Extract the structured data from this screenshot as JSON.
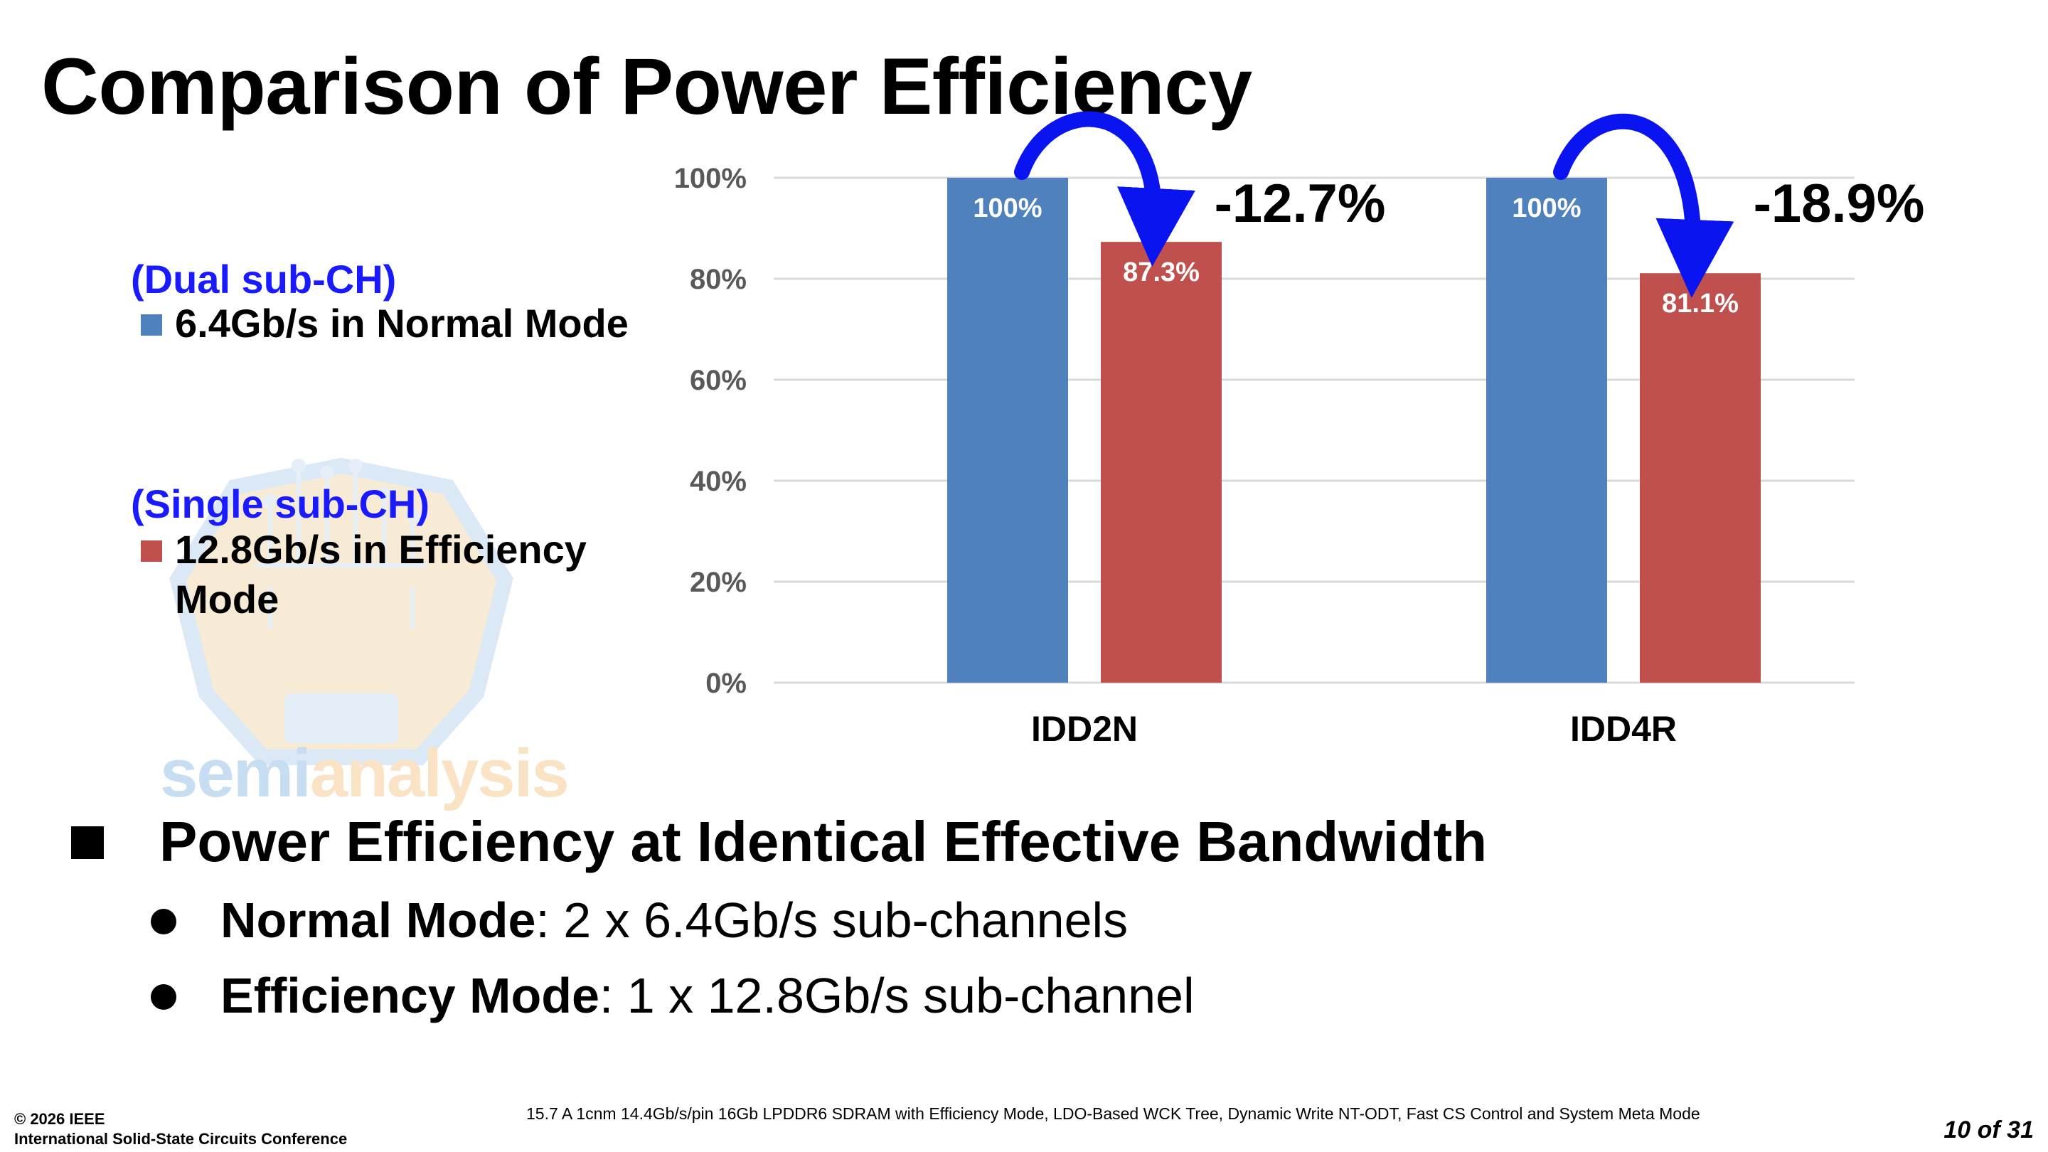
{
  "slide": {
    "title": "Comparison of Power Efficiency"
  },
  "watermark": {
    "text_a": "semi",
    "text_b": "analysis"
  },
  "legend": {
    "group1": "(Dual sub-CH)",
    "item1": "6.4Gb/s in Normal Mode",
    "group2": "(Single sub-CH)",
    "item2_line1": "12.8Gb/s in Efficiency",
    "item2_line2": "Mode"
  },
  "colors": {
    "normal": "#4f81bd",
    "efficiency": "#c0504d",
    "arrow": "#0a14f0",
    "grid": "#d9d9d9",
    "tick": "#595959",
    "legend_group": "#1a1aff"
  },
  "chart_data": {
    "type": "bar",
    "categories": [
      "IDD2N",
      "IDD4R"
    ],
    "series": [
      {
        "name": "6.4Gb/s in Normal Mode",
        "values": [
          100,
          100
        ],
        "labels": [
          "100%",
          "100%"
        ]
      },
      {
        "name": "12.8Gb/s in Efficiency Mode",
        "values": [
          87.3,
          81.1
        ],
        "labels": [
          "87.3%",
          "81.1%"
        ]
      }
    ],
    "ylim": [
      0,
      100
    ],
    "yticks": [
      "0%",
      "20%",
      "40%",
      "60%",
      "80%",
      "100%"
    ],
    "annotations": [
      "-12.7%",
      "-18.9%"
    ],
    "grid": true,
    "legend_position": "left"
  },
  "bullets": {
    "main": "Power Efficiency at Identical Effective Bandwidth",
    "sub1_bold": "Normal Mode",
    "sub1_rest": ": 2 x 6.4Gb/s sub-channels",
    "sub2_bold": "Efficiency Mode",
    "sub2_rest": ": 1 x 12.8Gb/s sub-channel"
  },
  "footer": {
    "copyright": "© 2026 IEEE",
    "conference": "International Solid-State Circuits Conference",
    "paper": "15.7 A 1cnm 14.4Gb/s/pin 16Gb LPDDR6 SDRAM with Efficiency Mode, LDO-Based WCK Tree, Dynamic Write NT-ODT, Fast CS Control and System Meta Mode",
    "page": "10 of 31"
  }
}
